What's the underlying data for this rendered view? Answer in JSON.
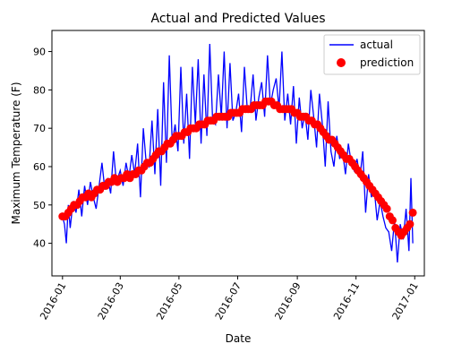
{
  "chart_data": {
    "type": "line",
    "title": "Actual and Predicted Values",
    "xlabel": "Date",
    "ylabel": "Maximum Temperature (F)",
    "xlim": [
      "2015-12-21",
      "2017-01-11"
    ],
    "ylim": [
      31.5,
      95.5
    ],
    "grid": false,
    "legend_position": "top-right",
    "x_ticks": [
      "2016-01",
      "2016-03",
      "2016-05",
      "2016-07",
      "2016-09",
      "2016-11",
      "2017-01"
    ],
    "y_ticks": [
      40,
      50,
      60,
      70,
      80,
      90
    ],
    "series": [
      {
        "name": "actual",
        "style": "line",
        "color": "#0000ff",
        "x": [
          "2016-01-01",
          "2016-01-03",
          "2016-01-05",
          "2016-01-07",
          "2016-01-09",
          "2016-01-12",
          "2016-01-15",
          "2016-01-18",
          "2016-01-21",
          "2016-01-24",
          "2016-01-27",
          "2016-01-30",
          "2016-02-02",
          "2016-02-05",
          "2016-02-08",
          "2016-02-11",
          "2016-02-14",
          "2016-02-17",
          "2016-02-20",
          "2016-02-23",
          "2016-02-26",
          "2016-03-01",
          "2016-03-04",
          "2016-03-07",
          "2016-03-10",
          "2016-03-13",
          "2016-03-16",
          "2016-03-19",
          "2016-03-22",
          "2016-03-25",
          "2016-03-28",
          "2016-03-31",
          "2016-04-03",
          "2016-04-06",
          "2016-04-09",
          "2016-04-12",
          "2016-04-15",
          "2016-04-18",
          "2016-04-21",
          "2016-04-24",
          "2016-04-27",
          "2016-04-30",
          "2016-05-03",
          "2016-05-06",
          "2016-05-09",
          "2016-05-12",
          "2016-05-15",
          "2016-05-18",
          "2016-05-21",
          "2016-05-24",
          "2016-05-27",
          "2016-05-30",
          "2016-06-02",
          "2016-06-05",
          "2016-06-08",
          "2016-06-11",
          "2016-06-14",
          "2016-06-17",
          "2016-06-20",
          "2016-06-23",
          "2016-06-26",
          "2016-06-29",
          "2016-07-02",
          "2016-07-05",
          "2016-07-08",
          "2016-07-11",
          "2016-07-14",
          "2016-07-17",
          "2016-07-20",
          "2016-07-23",
          "2016-07-26",
          "2016-07-29",
          "2016-08-01",
          "2016-08-04",
          "2016-08-07",
          "2016-08-10",
          "2016-08-13",
          "2016-08-16",
          "2016-08-19",
          "2016-08-22",
          "2016-08-25",
          "2016-08-28",
          "2016-08-31",
          "2016-09-03",
          "2016-09-06",
          "2016-09-09",
          "2016-09-12",
          "2016-09-15",
          "2016-09-18",
          "2016-09-21",
          "2016-09-24",
          "2016-09-27",
          "2016-09-30",
          "2016-10-03",
          "2016-10-06",
          "2016-10-09",
          "2016-10-12",
          "2016-10-15",
          "2016-10-18",
          "2016-10-21",
          "2016-10-24",
          "2016-10-27",
          "2016-10-30",
          "2016-11-02",
          "2016-11-05",
          "2016-11-08",
          "2016-11-11",
          "2016-11-14",
          "2016-11-17",
          "2016-11-20",
          "2016-11-23",
          "2016-11-26",
          "2016-11-29",
          "2016-12-02",
          "2016-12-05",
          "2016-12-08",
          "2016-12-11",
          "2016-12-14",
          "2016-12-17",
          "2016-12-20",
          "2016-12-23",
          "2016-12-26",
          "2016-12-28",
          "2016-12-30"
        ],
        "y": [
          47,
          45,
          40,
          50,
          44,
          51,
          48,
          54,
          47,
          55,
          50,
          56,
          52,
          49,
          55,
          61,
          54,
          57,
          53,
          64,
          56,
          59,
          55,
          61,
          57,
          63,
          58,
          66,
          52,
          70,
          61,
          60,
          72,
          58,
          75,
          55,
          82,
          61,
          89,
          66,
          71,
          64,
          86,
          66,
          79,
          62,
          86,
          71,
          88,
          66,
          84,
          68,
          92,
          72,
          71,
          84,
          73,
          90,
          70,
          87,
          72,
          74,
          79,
          69,
          86,
          75,
          75,
          84,
          72,
          78,
          82,
          73,
          89,
          76,
          80,
          83,
          75,
          90,
          72,
          79,
          71,
          81,
          66,
          78,
          70,
          74,
          67,
          80,
          73,
          65,
          79,
          71,
          60,
          77,
          64,
          60,
          68,
          62,
          64,
          58,
          66,
          61,
          59,
          62,
          57,
          64,
          48,
          58,
          52,
          54,
          46,
          51,
          47,
          44,
          43,
          38,
          46,
          35,
          45,
          41,
          49,
          38,
          57,
          40
        ]
      },
      {
        "name": "prediction",
        "style": "points",
        "color": "#ff0000",
        "x": [
          "2016-01-01",
          "2016-01-04",
          "2016-01-07",
          "2016-01-10",
          "2016-01-13",
          "2016-01-16",
          "2016-01-19",
          "2016-01-22",
          "2016-01-25",
          "2016-01-28",
          "2016-01-31",
          "2016-02-03",
          "2016-02-06",
          "2016-02-09",
          "2016-02-12",
          "2016-02-15",
          "2016-02-18",
          "2016-02-21",
          "2016-02-24",
          "2016-02-27",
          "2016-03-02",
          "2016-03-05",
          "2016-03-08",
          "2016-03-11",
          "2016-03-14",
          "2016-03-17",
          "2016-03-20",
          "2016-03-23",
          "2016-03-26",
          "2016-03-29",
          "2016-04-01",
          "2016-04-04",
          "2016-04-07",
          "2016-04-10",
          "2016-04-13",
          "2016-04-16",
          "2016-04-19",
          "2016-04-22",
          "2016-04-25",
          "2016-04-28",
          "2016-05-01",
          "2016-05-04",
          "2016-05-07",
          "2016-05-10",
          "2016-05-13",
          "2016-05-16",
          "2016-05-19",
          "2016-05-22",
          "2016-05-25",
          "2016-05-28",
          "2016-05-31",
          "2016-06-03",
          "2016-06-06",
          "2016-06-09",
          "2016-06-12",
          "2016-06-15",
          "2016-06-18",
          "2016-06-21",
          "2016-06-24",
          "2016-06-27",
          "2016-06-30",
          "2016-07-03",
          "2016-07-06",
          "2016-07-09",
          "2016-07-12",
          "2016-07-15",
          "2016-07-18",
          "2016-07-21",
          "2016-07-24",
          "2016-07-27",
          "2016-07-30",
          "2016-08-02",
          "2016-08-05",
          "2016-08-08",
          "2016-08-11",
          "2016-08-14",
          "2016-08-17",
          "2016-08-20",
          "2016-08-23",
          "2016-08-26",
          "2016-08-29",
          "2016-09-01",
          "2016-09-04",
          "2016-09-07",
          "2016-09-10",
          "2016-09-13",
          "2016-09-16",
          "2016-09-19",
          "2016-09-22",
          "2016-09-25",
          "2016-09-28",
          "2016-10-01",
          "2016-10-04",
          "2016-10-07",
          "2016-10-10",
          "2016-10-13",
          "2016-10-16",
          "2016-10-19",
          "2016-10-22",
          "2016-10-25",
          "2016-10-28",
          "2016-10-31",
          "2016-11-03",
          "2016-11-06",
          "2016-11-09",
          "2016-11-12",
          "2016-11-15",
          "2016-11-18",
          "2016-11-21",
          "2016-11-24",
          "2016-11-27",
          "2016-11-30",
          "2016-12-03",
          "2016-12-06",
          "2016-12-09",
          "2016-12-12",
          "2016-12-15",
          "2016-12-18",
          "2016-12-21",
          "2016-12-24",
          "2016-12-27",
          "2016-12-30"
        ],
        "y": [
          47,
          47,
          48,
          49,
          50,
          50,
          51,
          52,
          52,
          53,
          52,
          53,
          54,
          54,
          55,
          55,
          56,
          56,
          57,
          56,
          57,
          57,
          58,
          57,
          58,
          58,
          59,
          59,
          60,
          61,
          61,
          62,
          63,
          64,
          64,
          65,
          66,
          66,
          67,
          68,
          68,
          68,
          69,
          69,
          70,
          70,
          70,
          71,
          71,
          71,
          72,
          72,
          72,
          73,
          73,
          73,
          73,
          73,
          74,
          74,
          74,
          74,
          75,
          75,
          75,
          75,
          76,
          76,
          76,
          76,
          77,
          77,
          77,
          76,
          76,
          75,
          75,
          75,
          75,
          75,
          74,
          74,
          73,
          73,
          73,
          72,
          72,
          71,
          71,
          70,
          69,
          68,
          67,
          67,
          66,
          65,
          64,
          63,
          62,
          62,
          61,
          60,
          59,
          58,
          57,
          56,
          55,
          54,
          53,
          52,
          51,
          50,
          49,
          47,
          46,
          44,
          43,
          42,
          43,
          44,
          45,
          48
        ]
      }
    ]
  }
}
